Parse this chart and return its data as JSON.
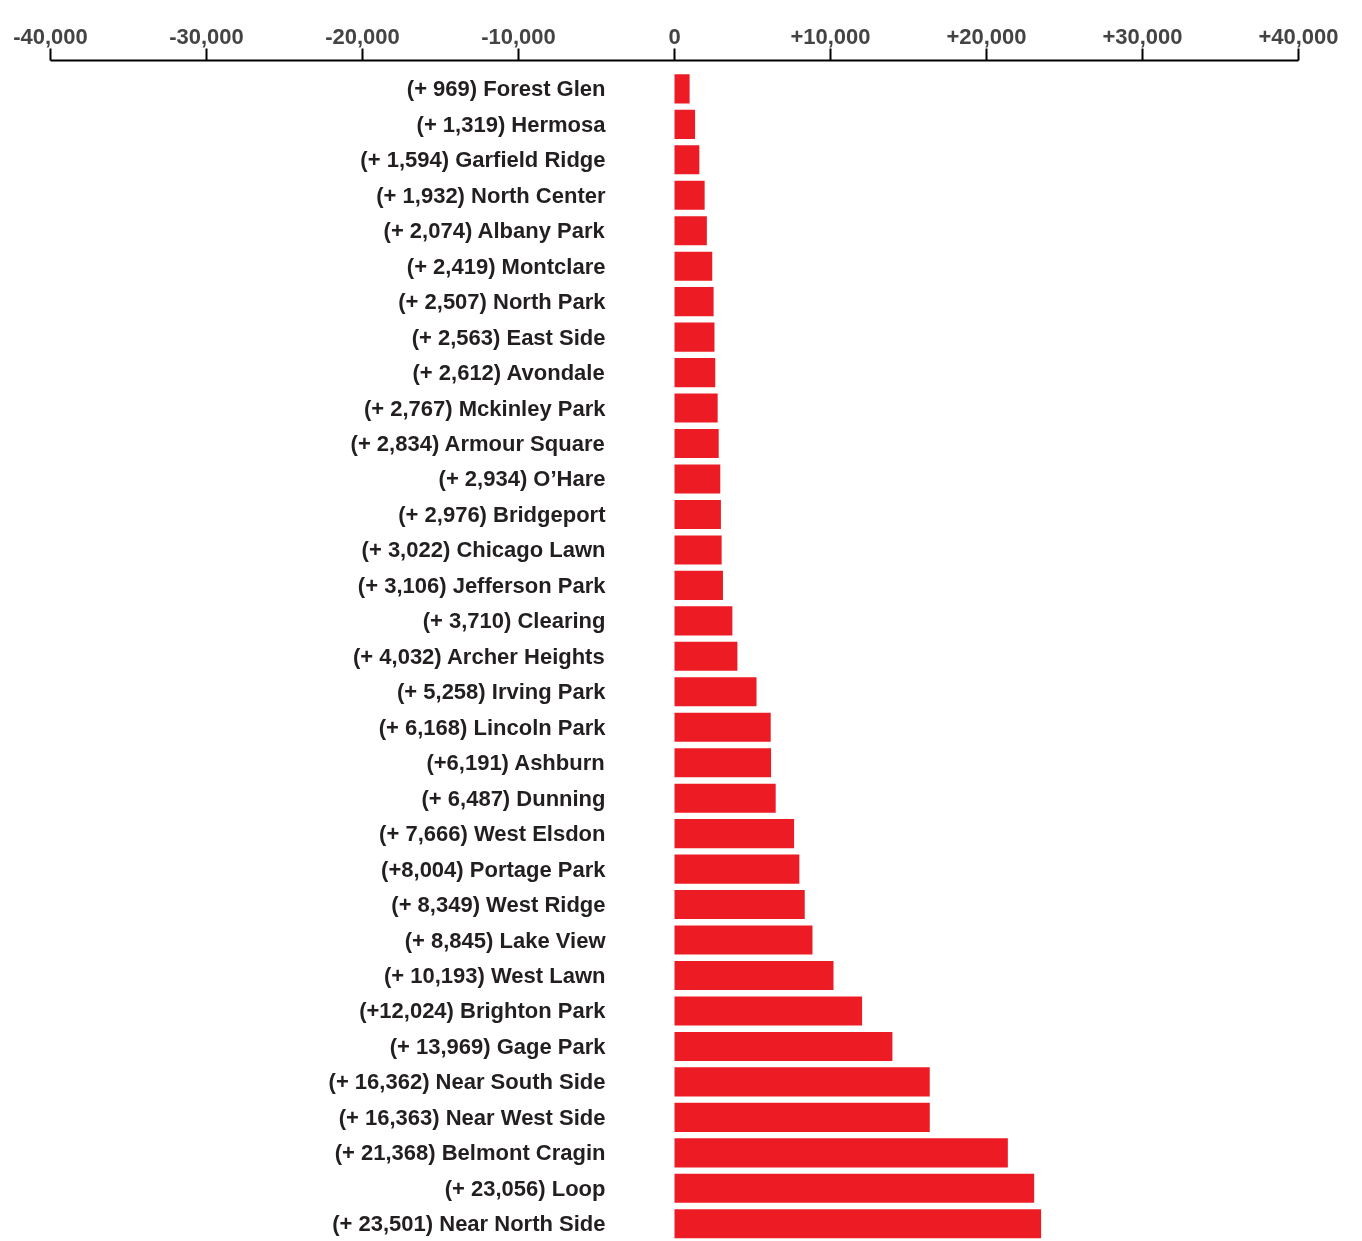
{
  "chart_data": {
    "type": "bar",
    "orientation": "horizontal",
    "color": "#ed1c24",
    "categories": [
      "(+ 969) Forest Glen",
      "(+ 1,319) Hermosa",
      "(+ 1,594) Garfield Ridge",
      "(+ 1,932) North Center",
      "(+ 2,074) Albany Park",
      "(+ 2,419) Montclare",
      "(+ 2,507) North Park",
      "(+ 2,563) East Side",
      "(+ 2,612) Avondale",
      "(+ 2,767) Mckinley Park",
      "(+ 2,834) Armour Square",
      "(+ 2,934) O’Hare",
      "(+ 2,976) Bridgeport",
      "(+ 3,022) Chicago Lawn",
      "(+ 3,106) Jefferson Park",
      "(+ 3,710) Clearing",
      "(+ 4,032) Archer Heights",
      "(+ 5,258) Irving Park",
      "(+ 6,168) Lincoln Park",
      "(+6,191) Ashburn",
      "(+ 6,487) Dunning",
      "(+ 7,666) West Elsdon",
      "(+8,004) Portage Park",
      "(+ 8,349) West Ridge",
      "(+ 8,845) Lake View",
      "(+ 10,193) West Lawn",
      "(+12,024) Brighton Park",
      "(+ 13,969) Gage Park",
      "(+ 16,362) Near South Side",
      "(+ 16,363) Near West Side",
      "(+ 21,368) Belmont Cragin",
      "(+ 23,056) Loop",
      "(+ 23,501) Near North Side"
    ],
    "values": [
      969,
      1319,
      1594,
      1932,
      2074,
      2419,
      2507,
      2563,
      2612,
      2767,
      2834,
      2934,
      2976,
      3022,
      3106,
      3710,
      4032,
      5258,
      6168,
      6191,
      6487,
      7666,
      8004,
      8349,
      8845,
      10193,
      12024,
      13969,
      16362,
      16363,
      21368,
      23056,
      23501
    ],
    "xlim": [
      -40000,
      40000
    ],
    "xticks": [
      {
        "value": -40000,
        "label": "-40,000"
      },
      {
        "value": -30000,
        "label": "-30,000"
      },
      {
        "value": -20000,
        "label": "-20,000"
      },
      {
        "value": -10000,
        "label": "-10,000"
      },
      0,
      {
        "value": 10000,
        "label": "+10,000"
      },
      {
        "value": 20000,
        "label": "+20,000"
      },
      {
        "value": 30000,
        "label": "+30,000"
      },
      {
        "value": 40000,
        "label": "+40,000"
      }
    ]
  }
}
